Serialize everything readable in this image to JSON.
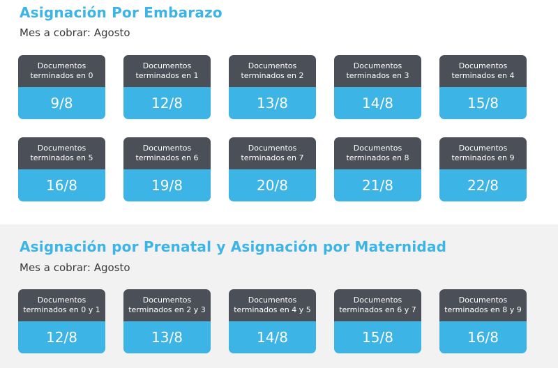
{
  "embarazo": {
    "title": "Asignación Por Embarazo",
    "subtitle": "Mes a cobrar: Agosto",
    "cards": [
      {
        "label": "Documentos\nterminados en 0",
        "date": "9/8"
      },
      {
        "label": "Documentos\nterminados en 1",
        "date": "12/8"
      },
      {
        "label": "Documentos\nterminados en 2",
        "date": "13/8"
      },
      {
        "label": "Documentos\nterminados en 3",
        "date": "14/8"
      },
      {
        "label": "Documentos\nterminados en 4",
        "date": "15/8"
      },
      {
        "label": "Documentos\nterminados en 5",
        "date": "16/8"
      },
      {
        "label": "Documentos\nterminados en 6",
        "date": "19/8"
      },
      {
        "label": "Documentos\nterminados en 7",
        "date": "20/8"
      },
      {
        "label": "Documentos\nterminados en 8",
        "date": "21/8"
      },
      {
        "label": "Documentos\nterminados en 9",
        "date": "22/8"
      }
    ]
  },
  "prenatal": {
    "title": "Asignación por Prenatal y Asignación por Maternidad",
    "subtitle": "Mes a cobrar: Agosto",
    "cards": [
      {
        "label": "Documentos\nterminados en 0 y 1",
        "date": "12/8"
      },
      {
        "label": "Documentos\nterminados en 2 y 3",
        "date": "13/8"
      },
      {
        "label": "Documentos\nterminados en 4 y 5",
        "date": "14/8"
      },
      {
        "label": "Documentos\nterminados en 6 y 7",
        "date": "15/8"
      },
      {
        "label": "Documentos\nterminados en 8 y 9",
        "date": "16/8"
      }
    ]
  },
  "colors": {
    "accent": "#3cb4e6",
    "card_header": "#4b4f58",
    "section_alt_bg": "#f2f2f2"
  }
}
